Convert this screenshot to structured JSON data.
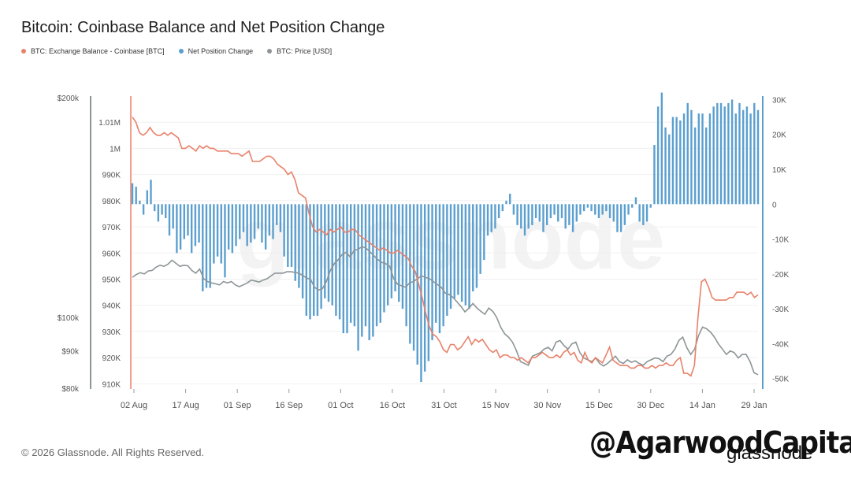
{
  "title": "Bitcoin: Coinbase Balance and Net Position Change",
  "legend": [
    {
      "label": "BTC: Exchange Balance - Coinbase [BTC]",
      "color": "#e8826a"
    },
    {
      "label": "Net Position Change",
      "color": "#5b9fcf"
    },
    {
      "label": "BTC: Price [USD]",
      "color": "#8d9596"
    }
  ],
  "footer": "© 2026 Glassnode. All Rights Reserved.",
  "watermark": "@AgarwoodCapital",
  "brand": "glassnode",
  "background_mark": "glassnode",
  "chart_data": {
    "type": "line",
    "x_ticks": [
      "02 Aug",
      "17 Aug",
      "01 Sep",
      "16 Sep",
      "01 Oct",
      "16 Oct",
      "31 Oct",
      "15 Nov",
      "30 Nov",
      "15 Dec",
      "30 Dec",
      "14 Jan",
      "29 Jan"
    ],
    "price_axis_ticks": [
      "$200k",
      "$100k",
      "$90k",
      "$80k"
    ],
    "balance_axis_ticks": [
      "1.01M",
      "1M",
      "990K",
      "980K",
      "970K",
      "960K",
      "950K",
      "940K",
      "930K",
      "920K",
      "910K"
    ],
    "netpos_axis_ticks": [
      "30K",
      "20K",
      "10K",
      "0",
      "-10K",
      "-20K",
      "-30K",
      "-40K",
      "-50K"
    ],
    "balance_ylim": [
      908000,
      1020000
    ],
    "netpos_ylim": [
      -53000,
      31000
    ],
    "price_scale": "log",
    "series": [
      {
        "name": "BTC: Exchange Balance - Coinbase [BTC]",
        "color": "#e8826a",
        "values": [
          1012000,
          1010000,
          1006000,
          1005000,
          1006000,
          1008000,
          1006000,
          1005000,
          1005000,
          1006000,
          1005000,
          1006000,
          1005000,
          1004000,
          1000000,
          1000000,
          1001000,
          1000000,
          999000,
          1001000,
          1000000,
          1001000,
          1000000,
          1000000,
          999000,
          999000,
          999000,
          999000,
          998000,
          998000,
          998000,
          997000,
          998000,
          999000,
          995000,
          995000,
          995000,
          996000,
          997000,
          997000,
          996000,
          994000,
          993000,
          992000,
          990000,
          991000,
          988000,
          983000,
          982000,
          981000,
          975000,
          970000,
          968000,
          969000,
          968000,
          967000,
          969000,
          968000,
          969000,
          970000,
          968000,
          968000,
          969000,
          969000,
          967000,
          966000,
          965000,
          964000,
          963000,
          962000,
          961000,
          962000,
          961000,
          960000,
          960000,
          961000,
          960000,
          959000,
          958000,
          955000,
          953000,
          948000,
          943000,
          937000,
          932000,
          929000,
          928000,
          926000,
          923000,
          922000,
          925000,
          925000,
          923000,
          924000,
          926000,
          928000,
          925000,
          927000,
          926000,
          927000,
          925000,
          923000,
          922000,
          923000,
          920000,
          921000,
          921000,
          920000,
          920000,
          919000,
          920000,
          919000,
          918000,
          920000,
          920000,
          921000,
          922000,
          921000,
          920000,
          920000,
          921000,
          920000,
          922000,
          923000,
          921000,
          922000,
          919000,
          918000,
          922000,
          919000,
          918000,
          920000,
          919000,
          918000,
          921000,
          924000,
          919000,
          918000,
          917000,
          917000,
          917000,
          916000,
          916000,
          917000,
          917000,
          916000,
          916000,
          917000,
          916000,
          917000,
          917000,
          918000,
          917000,
          917000,
          919000,
          920000,
          914000,
          914000,
          913000,
          917000,
          935000,
          949000,
          950000,
          947000,
          943000,
          942000,
          942000,
          942000,
          942000,
          943000,
          943000,
          945000,
          945000,
          945000,
          944000,
          945000,
          943000,
          944000
        ]
      },
      {
        "name": "Net Position Change",
        "color": "#5b9fcf",
        "values": [
          6000,
          5000,
          1000,
          -3000,
          4000,
          7000,
          -2000,
          -5000,
          -3000,
          -4000,
          -9000,
          -7000,
          -14000,
          -13000,
          -10000,
          -9000,
          -14000,
          -12000,
          -11000,
          -25000,
          -24000,
          -24000,
          -17000,
          -15000,
          -17000,
          -21000,
          -13000,
          -14000,
          -12000,
          -10000,
          -8000,
          -12000,
          -11000,
          -10000,
          -7000,
          -11000,
          -13000,
          -9000,
          -10000,
          -6000,
          -8000,
          -15000,
          -18000,
          -18000,
          -22000,
          -24000,
          -27000,
          -32000,
          -33000,
          -32000,
          -32000,
          -30000,
          -27000,
          -28000,
          -29000,
          -32000,
          -33000,
          -37000,
          -37000,
          -34000,
          -35000,
          -42000,
          -38000,
          -35000,
          -39000,
          -38000,
          -35000,
          -34000,
          -31000,
          -29000,
          -27000,
          -25000,
          -28000,
          -30000,
          -35000,
          -40000,
          -42000,
          -46000,
          -51000,
          -48000,
          -45000,
          -39000,
          -34000,
          -37000,
          -35000,
          -32000,
          -30000,
          -27000,
          -26000,
          -28000,
          -29000,
          -30000,
          -25000,
          -24000,
          -20000,
          -16000,
          -9000,
          -8000,
          -7000,
          -4000,
          -2000,
          1000,
          3000,
          -3000,
          -6000,
          -7000,
          -9000,
          -7000,
          -6000,
          -4000,
          -5000,
          -8000,
          -6000,
          -4000,
          -3000,
          -5000,
          -4000,
          -7000,
          -6000,
          -8000,
          -5000,
          -3000,
          -2000,
          -1000,
          -2000,
          -3000,
          -4000,
          -3000,
          -2000,
          -4000,
          -5000,
          -8000,
          -8000,
          -6000,
          -3000,
          -1000,
          2000,
          -5000,
          -6000,
          -5000,
          -1000,
          17000,
          28000,
          32000,
          22000,
          20000,
          25000,
          25000,
          24000,
          26000,
          29000,
          27000,
          22000,
          26000,
          26000,
          22000,
          26000,
          28000,
          29000,
          29000,
          28000,
          29000,
          30000,
          26000,
          29000,
          27000,
          28000,
          26000,
          29000,
          27000
        ]
      },
      {
        "name": "BTC: Price [USD]",
        "color": "#8d9596",
        "values": [
          113500,
          114500,
          115200,
          114700,
          115800,
          116000,
          117200,
          117900,
          117500,
          118300,
          119800,
          118600,
          117500,
          117900,
          117700,
          116000,
          115000,
          116500,
          113000,
          112000,
          111500,
          111200,
          110800,
          112000,
          111500,
          112000,
          110800,
          110200,
          110800,
          111500,
          112500,
          112200,
          111800,
          112500,
          113000,
          114000,
          115000,
          115000,
          115000,
          115500,
          115500,
          115300,
          115000,
          114200,
          113200,
          112800,
          110000,
          109000,
          109500,
          112000,
          116000,
          118500,
          120000,
          122000,
          122800,
          121000,
          123500,
          124000,
          125000,
          124500,
          123000,
          121500,
          120000,
          119000,
          118500,
          117500,
          113000,
          111000,
          110500,
          110000,
          111500,
          112000,
          113000,
          114000,
          113500,
          113000,
          112000,
          111000,
          110000,
          108000,
          107500,
          106500,
          105000,
          103500,
          101800,
          103000,
          104500,
          103000,
          102000,
          101000,
          103000,
          102000,
          100000,
          97000,
          95000,
          94000,
          92500,
          90000,
          87000,
          86500,
          86000,
          88500,
          89000,
          89500,
          90500,
          91000,
          90000,
          92500,
          93000,
          91500,
          90500,
          92000,
          92500,
          89500,
          88000,
          87500,
          87000,
          88000,
          86500,
          85800,
          86500,
          87500,
          88500,
          87000,
          86500,
          87500,
          86800,
          87200,
          86500,
          86000,
          87000,
          87500,
          88000,
          87800,
          87000,
          88500,
          89000,
          90500,
          93000,
          94000,
          91000,
          89000,
          90500,
          94500,
          97000,
          96500,
          95500,
          94000,
          92000,
          90500,
          89000,
          90000,
          89500,
          88000,
          89000,
          89000,
          87000,
          84000,
          83500
        ]
      }
    ]
  }
}
